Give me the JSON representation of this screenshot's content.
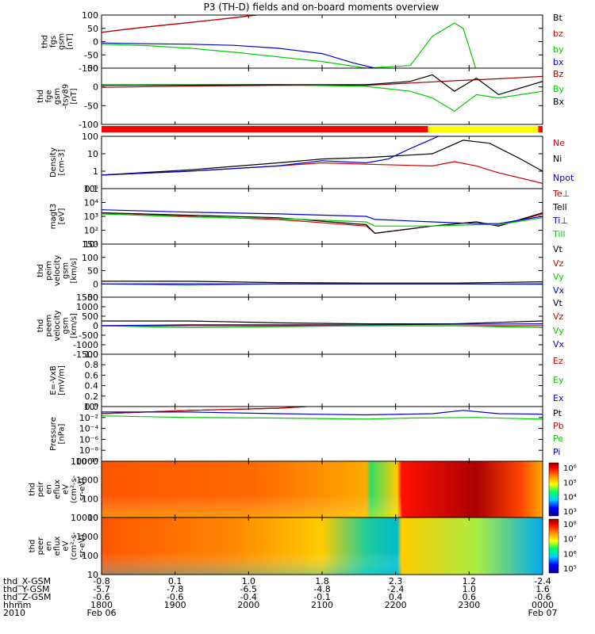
{
  "chart_data": {
    "type": "line",
    "title": "P3 (TH-D) fields and on-board moments overview",
    "panels": [
      {
        "ylabel_lines": [
          "thd",
          "fgs",
          "gsm",
          "[nT]"
        ],
        "yticks": [
          "100",
          "50",
          "0",
          "-50",
          "-100"
        ],
        "ylim": [
          -100,
          100
        ],
        "legend": [
          "Bt",
          "bz",
          "by",
          "bx"
        ],
        "series": [
          {
            "name": "Bt",
            "color": "#000000",
            "x": [
              0,
              0.05,
              0.1,
              0.2,
              0.3,
              0.4
            ],
            "y": [
              35,
              45,
              55,
              72,
              90,
              110
            ]
          },
          {
            "name": "bz",
            "color": "#cc0000",
            "x": [
              0,
              0.05,
              0.1,
              0.2,
              0.3,
              0.4
            ],
            "y": [
              35,
              45,
              55,
              72,
              90,
              110
            ]
          },
          {
            "name": "by",
            "color": "#00cc00",
            "x": [
              0,
              0.1,
              0.2,
              0.3,
              0.5,
              0.6,
              0.7,
              0.75,
              0.8,
              0.82,
              0.85
            ],
            "y": [
              -10,
              -15,
              -25,
              -40,
              -75,
              -100,
              -90,
              20,
              70,
              50,
              -110
            ]
          },
          {
            "name": "bx",
            "color": "#0000cc",
            "x": [
              0,
              0.1,
              0.2,
              0.3,
              0.4,
              0.5,
              0.57,
              0.62
            ],
            "y": [
              -5,
              -8,
              -10,
              -14,
              -25,
              -45,
              -80,
              -100
            ]
          }
        ]
      },
      {
        "ylabel_lines": [
          "thd",
          "fge",
          "gsm",
          "-tsy89",
          "[nT]"
        ],
        "yticks": [
          "50",
          "0",
          "-50",
          "-100"
        ],
        "ylim": [
          -120,
          50
        ],
        "legend": [
          "Bz",
          "By",
          "Bx"
        ],
        "series": [
          {
            "name": "Bz",
            "color": "#990000",
            "x": [
              0,
              0.2,
              0.4,
              0.6,
              0.7,
              0.8,
              0.9,
              1.0
            ],
            "y": [
              -8,
              -4,
              -2,
              -2,
              5,
              12,
              18,
              25
            ]
          },
          {
            "name": "By",
            "color": "#00cc00",
            "x": [
              0,
              0.2,
              0.4,
              0.6,
              0.7,
              0.75,
              0.8,
              0.85,
              0.9,
              1.0
            ],
            "y": [
              0,
              0,
              0,
              -5,
              -20,
              -40,
              -80,
              -30,
              -40,
              -20
            ]
          },
          {
            "name": "Bx",
            "color": "#000000",
            "x": [
              0,
              0.2,
              0.4,
              0.6,
              0.7,
              0.75,
              0.8,
              0.85,
              0.9,
              1.0
            ],
            "y": [
              -2,
              -1,
              0,
              0,
              10,
              30,
              -20,
              20,
              -30,
              10
            ]
          }
        ]
      },
      {
        "ylabel_lines": [
          "Density",
          "[cm-3]"
        ],
        "yticks": [
          "100",
          "10",
          "1",
          "0.1"
        ],
        "log": true,
        "ylim": [
          0.1,
          100
        ],
        "legend": [
          "Ne",
          "Ni",
          "Npot"
        ],
        "series": [
          {
            "name": "Ne",
            "color": "#cc0000",
            "x": [
              0,
              0.2,
              0.4,
              0.5,
              0.6,
              0.75,
              0.8,
              0.85,
              0.9,
              1.0
            ],
            "y": [
              0.6,
              1.0,
              2.0,
              3.0,
              2.5,
              2.0,
              3.5,
              2.0,
              0.8,
              0.2
            ]
          },
          {
            "name": "Ni",
            "color": "#000000",
            "x": [
              0,
              0.2,
              0.4,
              0.5,
              0.6,
              0.75,
              0.82,
              0.88,
              0.95,
              1.0
            ],
            "y": [
              0.6,
              1.2,
              3.0,
              5.0,
              6.0,
              10.0,
              60.0,
              40.0,
              5.0,
              1.0
            ]
          },
          {
            "name": "Npot",
            "color": "#0000cc",
            "x": [
              0,
              0.2,
              0.4,
              0.5,
              0.6,
              0.65,
              0.7,
              0.78
            ],
            "y": [
              0.6,
              1.0,
              2.0,
              4.0,
              3.0,
              5.0,
              20.0,
              150.0
            ]
          }
        ]
      },
      {
        "ylabel_lines": [
          "magt3",
          "[eV]"
        ],
        "yticks": [
          "10⁵",
          "10⁴",
          "10³",
          "10²",
          "10¹"
        ],
        "log": true,
        "ylim": [
          10,
          100000
        ],
        "legend": [
          "Te⊥",
          "Tell",
          "Ti⊥",
          "Till"
        ],
        "series": [
          {
            "name": "Te⊥",
            "color": "#cc0000",
            "x": [
              0,
              0.2,
              0.4,
              0.6,
              0.62,
              0.75,
              0.85,
              0.9,
              1.0
            ],
            "y": [
              1500,
              1000,
              600,
              200,
              60,
              200,
              400,
              200,
              1500
            ]
          },
          {
            "name": "Tell",
            "color": "#000000",
            "x": [
              0,
              0.2,
              0.4,
              0.6,
              0.62,
              0.75,
              0.85,
              0.9,
              1.0
            ],
            "y": [
              1800,
              1200,
              800,
              250,
              60,
              200,
              400,
              200,
              1800
            ]
          },
          {
            "name": "Ti⊥",
            "color": "#0000cc",
            "x": [
              0,
              0.2,
              0.4,
              0.6,
              0.62,
              0.75,
              0.85,
              0.9,
              1.0
            ],
            "y": [
              3000,
              2000,
              1500,
              1000,
              600,
              400,
              300,
              300,
              1000
            ]
          },
          {
            "name": "Till",
            "color": "#00cc00",
            "x": [
              0,
              0.2,
              0.4,
              0.6,
              0.62,
              0.75,
              0.85,
              0.9,
              1.0
            ],
            "y": [
              1500,
              900,
              700,
              400,
              200,
              200,
              250,
              250,
              800
            ]
          }
        ]
      },
      {
        "ylabel_lines": [
          "thd",
          "peim",
          "velocity",
          "gsm",
          "[km/s]"
        ],
        "yticks": [
          "150",
          "100",
          "50",
          "0",
          "-50"
        ],
        "ylim": [
          -50,
          150
        ],
        "legend": [
          "Vt",
          "Vz",
          "Vy",
          "Vx"
        ],
        "series": [
          {
            "name": "Vt",
            "color": "#000000",
            "x": [
              0,
              0.2,
              0.4,
              0.6,
              0.8,
              1.0
            ],
            "y": [
              10,
              10,
              5,
              3,
              3,
              8
            ]
          },
          {
            "name": "Vz",
            "color": "#cc0000",
            "x": [
              0,
              0.2,
              0.4,
              0.6,
              0.8,
              1.0
            ],
            "y": [
              0,
              0,
              0,
              0,
              0,
              0
            ]
          },
          {
            "name": "Vy",
            "color": "#00cc00",
            "x": [
              0,
              0.2,
              0.4,
              0.6,
              0.8,
              1.0
            ],
            "y": [
              0,
              -5,
              0,
              0,
              0,
              -2
            ]
          },
          {
            "name": "Vx",
            "color": "#0000cc",
            "x": [
              0,
              0.2,
              0.4,
              0.6,
              0.8,
              1.0
            ],
            "y": [
              0,
              0,
              0,
              0,
              0,
              0
            ]
          }
        ]
      },
      {
        "ylabel_lines": [
          "thd",
          "peem",
          "velocity",
          "gsm",
          "[km/s]"
        ],
        "yticks": [
          "1500",
          "1000",
          "500",
          "0",
          "-500",
          "-1000",
          "-1500"
        ],
        "ylim": [
          -1500,
          1500
        ],
        "legend": [
          "Vt",
          "Vz",
          "Vy",
          "Vx"
        ],
        "series": [
          {
            "name": "Vt",
            "color": "#000000",
            "x": [
              0,
              0.2,
              0.4,
              0.6,
              0.8,
              1.0
            ],
            "y": [
              250,
              250,
              150,
              100,
              100,
              250
            ]
          },
          {
            "name": "Vz",
            "color": "#cc0000",
            "x": [
              0,
              0.2,
              0.4,
              0.6,
              0.8,
              1.0
            ],
            "y": [
              0,
              0,
              0,
              0,
              0,
              0
            ]
          },
          {
            "name": "Vy",
            "color": "#00cc00",
            "x": [
              0,
              0.2,
              0.4,
              0.6,
              0.8,
              1.0
            ],
            "y": [
              0,
              -100,
              -50,
              0,
              0,
              -100
            ]
          },
          {
            "name": "Vx",
            "color": "#0000cc",
            "x": [
              0,
              0.2,
              0.4,
              0.6,
              0.8,
              1.0
            ],
            "y": [
              0,
              50,
              50,
              50,
              80,
              100
            ]
          }
        ]
      },
      {
        "ylabel_lines": [
          "E=-VxB",
          "[mV/m]"
        ],
        "yticks": [
          "1.0",
          "0.8",
          "0.6",
          "0.4",
          "0.2",
          "0.0"
        ],
        "ylim": [
          0,
          1
        ],
        "legend": [
          "Ez",
          "Ey",
          "Ex"
        ],
        "series": []
      },
      {
        "ylabel_lines": [
          "Pressure",
          "[nPa]"
        ],
        "yticks": [
          "10⁰",
          "10⁻²",
          "10⁻⁴",
          "10⁻⁶",
          "10⁻⁸",
          "10⁻¹⁰"
        ],
        "log": true,
        "ylim": [
          1e-10,
          1
        ],
        "legend": [
          "Pt",
          "Pb",
          "Pe",
          "Pi"
        ],
        "series": [
          {
            "name": "Pt",
            "color": "#000000",
            "x": [
              0,
              0.2,
              0.4,
              0.5
            ],
            "y": [
              0.05,
              0.2,
              0.5,
              1.5
            ]
          },
          {
            "name": "Pb",
            "color": "#cc0000",
            "x": [
              0,
              0.2,
              0.4,
              0.5
            ],
            "y": [
              0.05,
              0.2,
              0.5,
              1.5
            ]
          },
          {
            "name": "Pe",
            "color": "#00cc00",
            "x": [
              0,
              0.2,
              0.4,
              0.6,
              0.7,
              0.85,
              1.0
            ],
            "y": [
              0.02,
              0.01,
              0.008,
              0.005,
              0.008,
              0.01,
              0.005
            ]
          },
          {
            "name": "Pi",
            "color": "#0000cc",
            "x": [
              0,
              0.2,
              0.4,
              0.6,
              0.75,
              0.82,
              0.9,
              1.0
            ],
            "y": [
              0.1,
              0.1,
              0.05,
              0.03,
              0.05,
              0.2,
              0.05,
              0.04
            ]
          }
        ]
      },
      {
        "type": "heatmap",
        "ylabel_lines": [
          "thd",
          "peir",
          "en",
          "eflux",
          "eV",
          "(cm²-s-",
          "sr-eV)"
        ],
        "yticks": [
          "10000",
          "1000",
          "100",
          "10"
        ],
        "colorbar_ticks": [
          "10⁶",
          "10⁵",
          "10⁴",
          "10³"
        ]
      },
      {
        "type": "heatmap",
        "ylabel_lines": [
          "thd",
          "peer",
          "en",
          "eflux",
          "eV",
          "(cm²-s-",
          "sr-eV)"
        ],
        "yticks": [
          "10000",
          "1000",
          "100",
          "10"
        ],
        "colorbar_ticks": [
          "10⁸",
          "10⁷",
          "10⁶",
          "10⁵"
        ]
      }
    ],
    "xaxis": {
      "row_labels": [
        "thd_X-GSM",
        "thd_Y-GSM",
        "thd_Z-GSM",
        "hhmm",
        "2010"
      ],
      "ticks": [
        {
          "x": 0.0,
          "lines": [
            "-0.8",
            "-5.7",
            "-0.6",
            "1800",
            "Feb 06"
          ]
        },
        {
          "x": 0.1667,
          "lines": [
            "0.1",
            "-7.8",
            "-0.6",
            "1900",
            ""
          ]
        },
        {
          "x": 0.3333,
          "lines": [
            "1.0",
            "-6.5",
            "-0.4",
            "2000",
            ""
          ]
        },
        {
          "x": 0.5,
          "lines": [
            "1.8",
            "-4.8",
            "-0.1",
            "2100",
            ""
          ]
        },
        {
          "x": 0.6667,
          "lines": [
            "2.3",
            "-2.4",
            "0.4",
            "2200",
            ""
          ]
        },
        {
          "x": 0.8333,
          "lines": [
            "1.2",
            "1.0",
            "0.6",
            "2300",
            ""
          ]
        },
        {
          "x": 1.0,
          "lines": [
            "-2.4",
            "1.6",
            "-0.6",
            "0000",
            "Feb 07"
          ]
        }
      ]
    },
    "mode_bar_colors": [
      "#ff0000",
      "#ffff00",
      "#ff0000"
    ]
  }
}
